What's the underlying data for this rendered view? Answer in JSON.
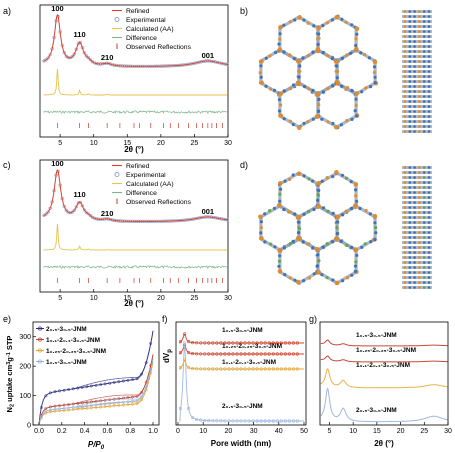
{
  "figure": {
    "panel_letters": [
      "a)",
      "b)",
      "c)",
      "d)",
      "e)",
      "f)",
      "g)"
    ]
  },
  "colors": {
    "refined": "#d9412c",
    "experimental": "#8ba2c8",
    "calculated": "#e8c24c",
    "difference": "#7fb38a",
    "reflection": "#c0392b",
    "e_series": [
      "#2b2f83",
      "#b5443a",
      "#e3a63a",
      "#97b4de"
    ],
    "f_series": [
      "#d0452e",
      "#d0452e",
      "#e0a83a",
      "#9fb8e0"
    ],
    "g_series": [
      "#c8483a",
      "#c8483a",
      "#e4b54a",
      "#9fb8e0"
    ],
    "framework_orange": "#e08a2c",
    "framework_blue": "#3a6fb0",
    "framework_green": "#5aa84a"
  },
  "chart_data": [
    {
      "panel": "a)",
      "type": "line",
      "xlabel": "2θ (°)",
      "xlim": [
        2,
        30
      ],
      "xticks": [
        5,
        10,
        15,
        20,
        25,
        30
      ],
      "legend": [
        "Refined",
        "Experimental",
        "Calculated (AA)",
        "Difference",
        "Observed Reflections"
      ],
      "legend_position": "top-right",
      "peak_labels": [
        {
          "text": "100",
          "x": 4.6
        },
        {
          "text": "110",
          "x": 7.9
        },
        {
          "text": "210",
          "x": 12.0
        },
        {
          "text": "001",
          "x": 27.0
        }
      ],
      "peaks": [
        {
          "x": 4.6,
          "height": 1.0,
          "width": 0.55
        },
        {
          "x": 7.9,
          "height": 0.45,
          "width": 0.7
        },
        {
          "x": 9.2,
          "height": 0.06,
          "width": 0.6
        },
        {
          "x": 12.0,
          "height": 0.05,
          "width": 0.8
        },
        {
          "x": 27.0,
          "height": 0.12,
          "width": 2.5
        }
      ],
      "calculated_peaks": [
        {
          "x": 4.6,
          "height": 1.0
        },
        {
          "x": 7.9,
          "height": 0.18
        },
        {
          "x": 9.2,
          "height": 0.05
        },
        {
          "x": 12.0,
          "height": 0.03
        }
      ],
      "reflections": [
        4.6,
        7.9,
        9.2,
        12.0,
        13.9,
        16.0,
        16.8,
        18.5,
        20.4,
        21.4,
        22.6,
        24.1,
        25.3,
        26.2,
        27.0,
        27.6,
        28.3,
        29.2
      ]
    },
    {
      "panel": "c)",
      "type": "line",
      "xlabel": "2θ (°)",
      "xlim": [
        2,
        30
      ],
      "xticks": [
        5,
        10,
        15,
        20,
        25,
        30
      ],
      "legend": [
        "Refined",
        "Experimental",
        "Calculated (AA)",
        "Difference",
        "Observed Reflections"
      ],
      "legend_position": "top-right",
      "peak_labels": [
        {
          "text": "100",
          "x": 4.6
        },
        {
          "text": "110",
          "x": 7.9
        },
        {
          "text": "210",
          "x": 12.0
        },
        {
          "text": "001",
          "x": 27.0
        }
      ],
      "peaks": [
        {
          "x": 4.6,
          "height": 1.0,
          "width": 0.6
        },
        {
          "x": 7.9,
          "height": 0.35,
          "width": 0.75
        },
        {
          "x": 9.2,
          "height": 0.05,
          "width": 0.6
        },
        {
          "x": 12.0,
          "height": 0.04,
          "width": 0.8
        },
        {
          "x": 27.0,
          "height": 0.1,
          "width": 2.5
        }
      ],
      "calculated_peaks": [
        {
          "x": 4.6,
          "height": 1.0
        },
        {
          "x": 7.9,
          "height": 0.15
        },
        {
          "x": 9.2,
          "height": 0.04
        },
        {
          "x": 12.0,
          "height": 0.02
        }
      ],
      "reflections": [
        4.6,
        7.9,
        9.2,
        12.0,
        13.9,
        16.0,
        16.8,
        18.5,
        20.4,
        21.4,
        22.6,
        24.1,
        25.3,
        26.2,
        27.0,
        27.6,
        28.3,
        29.2
      ]
    },
    {
      "panel": "e)",
      "type": "scatter",
      "xlabel": "P/P0",
      "ylabel": "N2 uptake cm3g-1 STP",
      "xlim": [
        0,
        1.0
      ],
      "ylim": [
        0,
        350
      ],
      "xticks": [
        0.0,
        0.2,
        0.4,
        0.6,
        0.8,
        1.0
      ],
      "yticks": [
        0,
        100,
        200,
        300
      ],
      "legend_position": "top-left",
      "series": [
        {
          "name": "2₀.₅-3₀.₅-JNM",
          "q_mono": 105,
          "slope": 60,
          "end": 320
        },
        {
          "name": "1₀.₁-2₀.₄-3₀.₅-JNM",
          "q_mono": 58,
          "slope": 45,
          "end": 240
        },
        {
          "name": "1₀.₂₅-2₀.₂₅-3₀.₅-JNM",
          "q_mono": 42,
          "slope": 35,
          "end": 215
        },
        {
          "name": "1₀.₅-3₀.₅-JNM",
          "q_mono": 48,
          "slope": 40,
          "end": 225
        }
      ]
    },
    {
      "panel": "f)",
      "type": "line",
      "xlabel": "Pore width (nm)",
      "ylabel": "dVp",
      "xlim": [
        0,
        50
      ],
      "xticks": [
        0,
        10,
        20,
        30,
        40,
        50
      ],
      "series": [
        {
          "name": "1₀.₅-3₀.₅-JNM",
          "peak": 0.9,
          "offset": 3
        },
        {
          "name": "1₀.₂₅-2₀.₂₅-3₀.₅-JNM",
          "peak": 0.9,
          "offset": 2
        },
        {
          "name": "1₀.₁-2₀.₄-3₀.₅-JNM",
          "peak": 0.9,
          "offset": 1
        },
        {
          "name": "2₀.₅-3₀.₅-JNM",
          "peak": 3.2,
          "offset": 0
        }
      ]
    },
    {
      "panel": "g)",
      "type": "line",
      "xlabel": "2θ (°)",
      "xlim": [
        3,
        30
      ],
      "xticks": [
        5,
        10,
        15,
        20,
        25,
        30
      ],
      "series": [
        {
          "name": "1₀.₅-3₀.₅-JNM",
          "offset": 3,
          "scale": 0.25
        },
        {
          "name": "1₀.₂₅-2₀.₂₅-3₀.₅-JNM",
          "offset": 2,
          "scale": 0.25
        },
        {
          "name": "1₀.₁-2₀.₄-3₀.₅-JNM",
          "offset": 1,
          "scale": 0.9
        },
        {
          "name": "2₀.₅-3₀.₅-JNM",
          "offset": 0,
          "scale": 1.6
        }
      ]
    }
  ]
}
